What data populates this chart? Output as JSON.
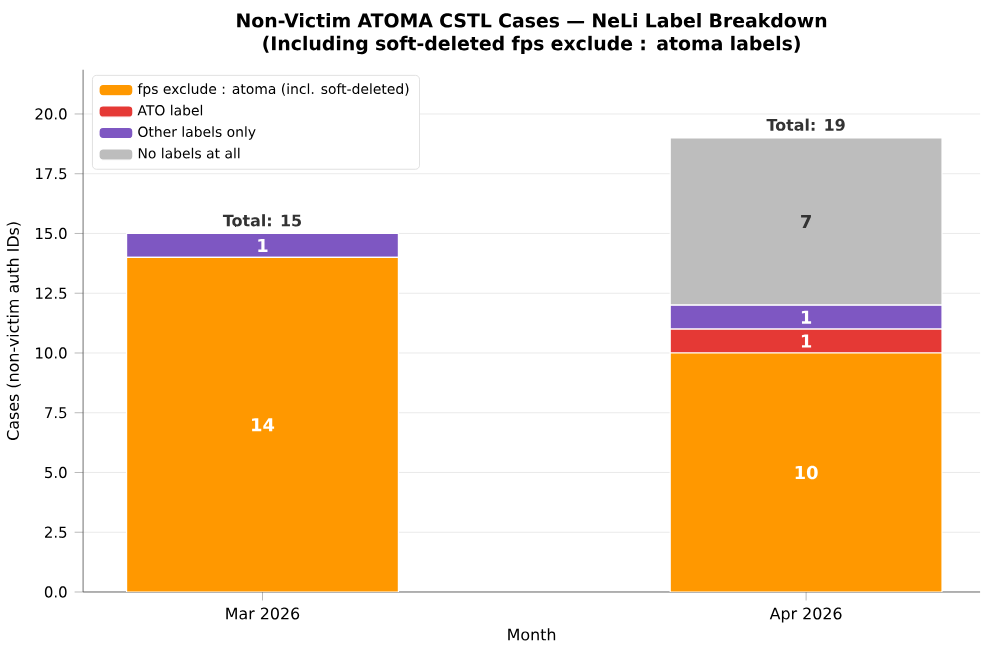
{
  "chart_data": {
    "type": "bar",
    "stacked": true,
    "title": "Non-Victim ATOMA CSTL Cases — NeLi Label Breakdown\n(Including soft-deleted fps exclude : atoma labels)",
    "xlabel": "Month",
    "ylabel": "Cases (non-victim auth IDs)",
    "categories": [
      "Mar 2026",
      "Apr 2026"
    ],
    "series": [
      {
        "name": "fps exclude : atoma (incl. soft-deleted)",
        "color": "#ff9800",
        "values": [
          14,
          10
        ],
        "value_labels": [
          "14",
          "10"
        ]
      },
      {
        "name": "ATO label",
        "color": "#e53935",
        "values": [
          0,
          1
        ],
        "value_labels": [
          null,
          "1"
        ]
      },
      {
        "name": "Other labels only",
        "color": "#7e57c2",
        "values": [
          1,
          1
        ],
        "value_labels": [
          "1",
          "1"
        ]
      },
      {
        "name": "No labels at all",
        "color": "#bdbdbd",
        "values": [
          0,
          7
        ],
        "value_labels": [
          null,
          "7"
        ]
      }
    ],
    "totals": [
      "Total: 15",
      "Total: 19"
    ],
    "ylim": [
      0,
      21.85
    ],
    "yticks": [
      {
        "value": 0,
        "label": "0.0"
      },
      {
        "value": 2.5,
        "label": "2.5"
      },
      {
        "value": 5,
        "label": "5.0"
      },
      {
        "value": 7.5,
        "label": "7.5"
      },
      {
        "value": 10,
        "label": "10.0"
      },
      {
        "value": 12.5,
        "label": "12.5"
      },
      {
        "value": 15,
        "label": "15.0"
      },
      {
        "value": 17.5,
        "label": "17.5"
      },
      {
        "value": 20,
        "label": "20.0"
      }
    ],
    "grid": "y",
    "legend": "top left"
  }
}
